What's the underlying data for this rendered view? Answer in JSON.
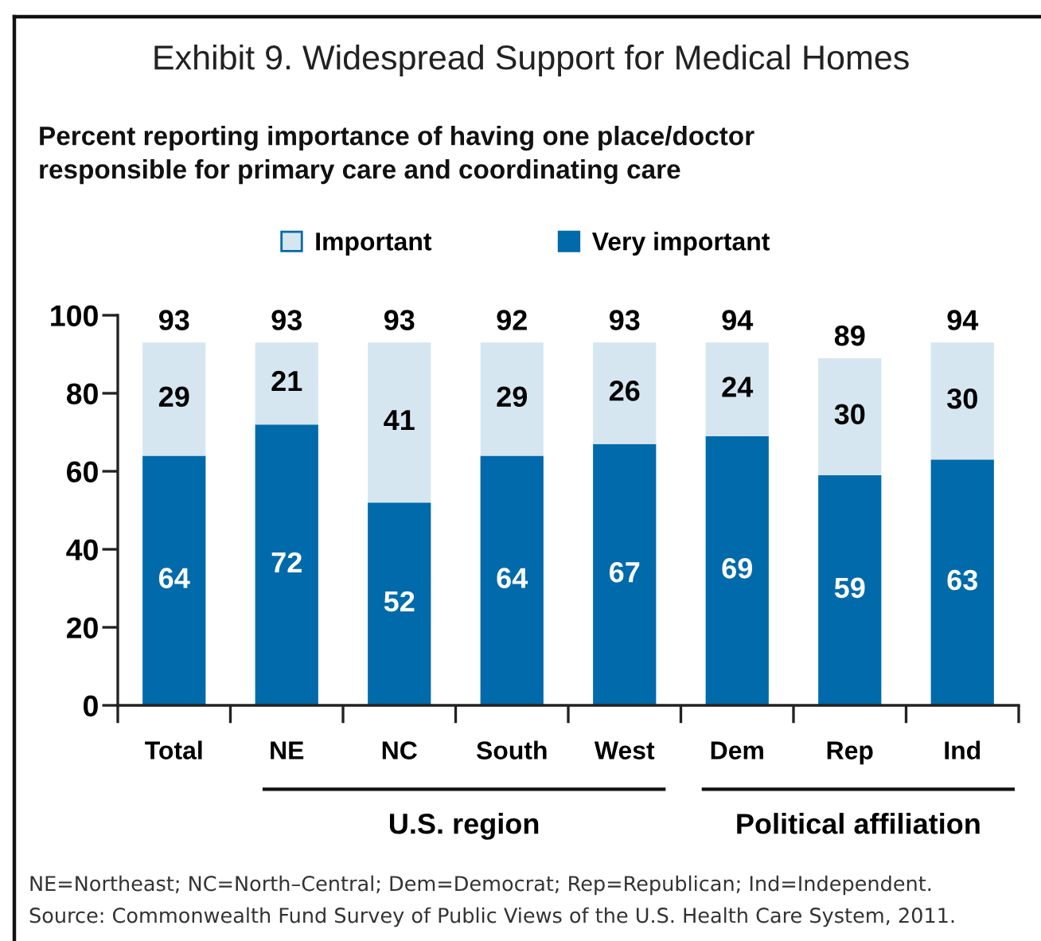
{
  "chart_data": {
    "type": "bar",
    "stacked": true,
    "title": "Exhibit 9. Widespread Support for Medical Homes",
    "subtitle": "Percent reporting importance of having one place/doctor\nresponsible for primary care and coordinating care",
    "categories": [
      "Total",
      "NE",
      "NC",
      "South",
      "West",
      "Dem",
      "Rep",
      "Ind"
    ],
    "series": [
      {
        "name": "Very important",
        "color": "#006aaa",
        "values": [
          64,
          72,
          52,
          64,
          67,
          69,
          59,
          63
        ]
      },
      {
        "name": "Important",
        "color": "#d6e6f1",
        "values": [
          29,
          21,
          41,
          29,
          26,
          24,
          30,
          30
        ]
      }
    ],
    "totals": [
      "93",
      "93",
      "93",
      "92",
      "93",
      "94",
      "89",
      "94"
    ],
    "data_labels": true,
    "ylim": [
      0,
      100
    ],
    "yticks": [
      0,
      20,
      40,
      60,
      80,
      100
    ],
    "grid": false,
    "legend": "top",
    "annotations": [
      "U.S. region",
      "Political affiliation",
      "NE=Northeast; NC=North–Central; Dem=Democrat; Rep=Republican; Ind=Independent.",
      "Source: Commonwealth Fund Survey of Public Views of the U.S. Health Care System, 2011."
    ]
  }
}
